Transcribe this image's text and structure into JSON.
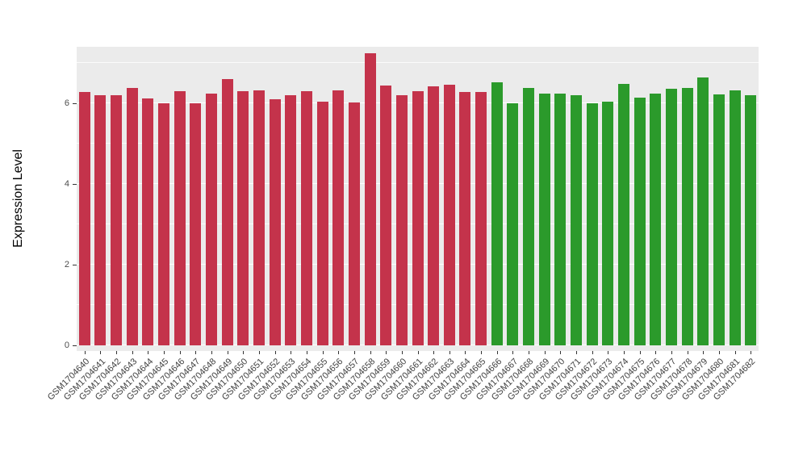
{
  "chart_data": {
    "type": "bar",
    "title": "",
    "xlabel": "",
    "ylabel": "Expression Level",
    "categories": [
      "GSM1704640",
      "GSM1704641",
      "GSM1704642",
      "GSM1704643",
      "GSM1704644",
      "GSM1704645",
      "GSM1704646",
      "GSM1704647",
      "GSM1704648",
      "GSM1704649",
      "GSM1704650",
      "GSM1704651",
      "GSM1704652",
      "GSM1704653",
      "GSM1704654",
      "GSM1704655",
      "GSM1704656",
      "GSM1704657",
      "GSM1704658",
      "GSM1704659",
      "GSM1704660",
      "GSM1704661",
      "GSM1704662",
      "GSM1704663",
      "GSM1704664",
      "GSM1704665",
      "GSM1704666",
      "GSM1704667",
      "GSM1704668",
      "GSM1704669",
      "GSM1704670",
      "GSM1704671",
      "GSM1704672",
      "GSM1704673",
      "GSM1704674",
      "GSM1704675",
      "GSM1704676",
      "GSM1704677",
      "GSM1704678",
      "GSM1704679",
      "GSM1704680",
      "GSM1704681",
      "GSM1704682"
    ],
    "values": [
      6.28,
      6.2,
      6.2,
      6.38,
      6.12,
      6.0,
      6.3,
      6.0,
      6.25,
      6.6,
      6.3,
      6.33,
      6.1,
      6.2,
      6.3,
      6.05,
      6.33,
      6.02,
      7.25,
      6.45,
      6.2,
      6.3,
      6.42,
      6.47,
      6.28,
      6.28,
      6.52,
      6.0,
      6.38,
      6.25,
      6.25,
      6.2,
      6.0,
      6.05,
      6.48,
      6.15,
      6.25,
      6.37,
      6.38,
      6.65,
      6.22,
      6.32,
      6.2
    ],
    "groups": [
      "red",
      "red",
      "red",
      "red",
      "red",
      "red",
      "red",
      "red",
      "red",
      "red",
      "red",
      "red",
      "red",
      "red",
      "red",
      "red",
      "red",
      "red",
      "red",
      "red",
      "red",
      "red",
      "red",
      "red",
      "red",
      "red",
      "green",
      "green",
      "green",
      "green",
      "green",
      "green",
      "green",
      "green",
      "green",
      "green",
      "green",
      "green",
      "green",
      "green",
      "green",
      "green",
      "green"
    ],
    "group_colors": {
      "red": "#C4334B",
      "green": "#2B9A2B"
    },
    "yticks": [
      0,
      2,
      4,
      6
    ],
    "yminorticks": [
      1,
      3,
      5,
      7
    ],
    "ylim": [
      0,
      7.4
    ],
    "grid": "on",
    "legend_position": "none",
    "colors": {
      "panel_bg": "#EBEBEB",
      "gridline": "#FFFFFF",
      "axis_text": "#4D4D4D",
      "axis_title": "#000000"
    }
  }
}
